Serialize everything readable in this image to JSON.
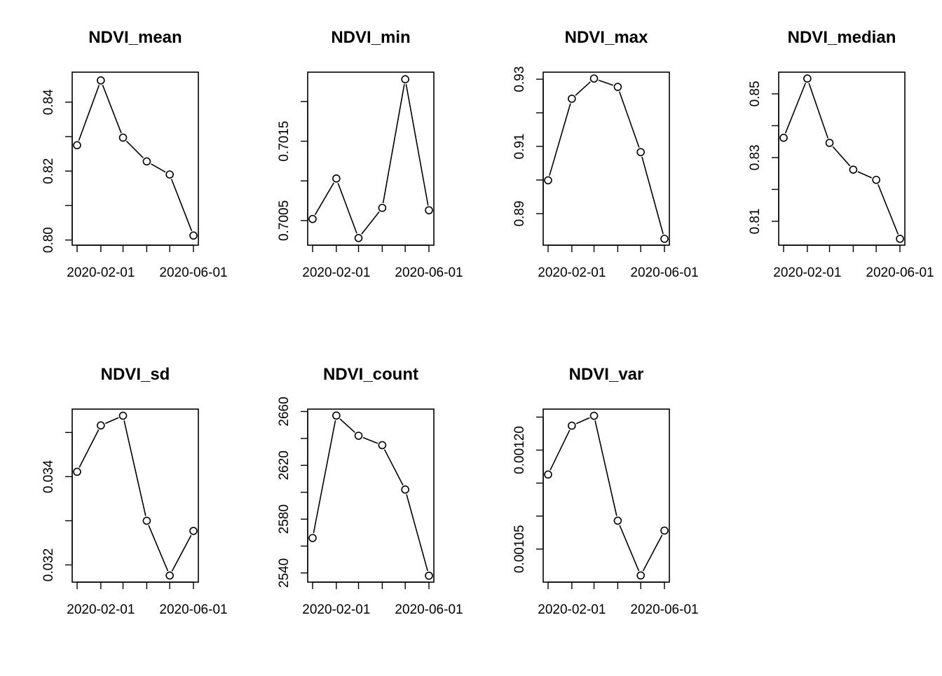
{
  "chart_data": [
    {
      "type": "line",
      "title": "NDVI_mean",
      "x": [
        "2020-01-01",
        "2020-02-01",
        "2020-03-01",
        "2020-04-01",
        "2020-05-01",
        "2020-06-01"
      ],
      "values": [
        0.8275,
        0.8463,
        0.8297,
        0.8228,
        0.819,
        0.8013
      ],
      "xticks": [
        "2020-02-01",
        "2020-06-01"
      ],
      "yticks": [
        "0.80",
        "0.82",
        "0.84"
      ],
      "yminor": [
        0.8,
        0.81,
        0.82,
        0.83,
        0.84
      ],
      "ylim": [
        0.7985,
        0.8487
      ]
    },
    {
      "type": "line",
      "title": "NDVI_min",
      "x": [
        "2020-01-01",
        "2020-02-01",
        "2020-03-01",
        "2020-04-01",
        "2020-05-01",
        "2020-06-01"
      ],
      "values": [
        0.70052,
        0.70103,
        0.70028,
        0.70066,
        0.70228,
        0.70063
      ],
      "xticks": [
        "2020-02-01",
        "2020-06-01"
      ],
      "yticks": [
        "0.7005",
        "0.7015"
      ],
      "yminor": [
        0.7005,
        0.701,
        0.7015,
        0.702
      ],
      "ylim": [
        0.70019,
        0.70237
      ]
    },
    {
      "type": "line",
      "title": "NDVI_max",
      "x": [
        "2020-01-01",
        "2020-02-01",
        "2020-03-01",
        "2020-04-01",
        "2020-05-01",
        "2020-06-01"
      ],
      "values": [
        0.8999,
        0.9242,
        0.9302,
        0.9277,
        0.9083,
        0.8825
      ],
      "xticks": [
        "2020-02-01",
        "2020-06-01"
      ],
      "yticks": [
        "0.89",
        "0.91",
        "0.93"
      ],
      "yminor": [
        0.89,
        0.9,
        0.91,
        0.92,
        0.93
      ],
      "ylim": [
        0.8806,
        0.9321
      ]
    },
    {
      "type": "line",
      "title": "NDVI_median",
      "x": [
        "2020-01-01",
        "2020-02-01",
        "2020-03-01",
        "2020-04-01",
        "2020-05-01",
        "2020-06-01"
      ],
      "values": [
        0.8362,
        0.8548,
        0.8346,
        0.8262,
        0.823,
        0.8045
      ],
      "xticks": [
        "2020-02-01",
        "2020-06-01"
      ],
      "yticks": [
        "0.81",
        "0.83",
        "0.85"
      ],
      "yminor": [
        0.81,
        0.82,
        0.83,
        0.84,
        0.85
      ],
      "ylim": [
        0.8025,
        0.8568
      ]
    },
    {
      "type": "line",
      "title": "NDVI_sd",
      "x": [
        "2020-01-01",
        "2020-02-01",
        "2020-03-01",
        "2020-04-01",
        "2020-05-01",
        "2020-06-01"
      ],
      "values": [
        0.03411,
        0.03516,
        0.03538,
        0.033,
        0.03176,
        0.03277
      ],
      "xticks": [
        "2020-02-01",
        "2020-06-01"
      ],
      "yticks": [
        "0.032",
        "0.034"
      ],
      "yminor": [
        0.032,
        0.033,
        0.034,
        0.035
      ],
      "ylim": [
        0.03161,
        0.03553
      ]
    },
    {
      "type": "line",
      "title": "NDVI_count",
      "x": [
        "2020-01-01",
        "2020-02-01",
        "2020-03-01",
        "2020-04-01",
        "2020-05-01",
        "2020-06-01"
      ],
      "values": [
        2566,
        2657,
        2642,
        2635,
        2602,
        2538
      ],
      "xticks": [
        "2020-02-01",
        "2020-06-01"
      ],
      "yticks": [
        "2540",
        "2580",
        "2620",
        "2660"
      ],
      "yminor": [
        2540,
        2560,
        2580,
        2600,
        2620,
        2640,
        2660
      ],
      "ylim": [
        2533.2,
        2661.8
      ]
    },
    {
      "type": "line",
      "title": "NDVI_var",
      "x": [
        "2020-01-01",
        "2020-02-01",
        "2020-03-01",
        "2020-04-01",
        "2020-05-01",
        "2020-06-01"
      ],
      "values": [
        0.001163,
        0.001237,
        0.001252,
        0.001093,
        0.00101,
        0.001078
      ],
      "xticks": [
        "2020-02-01",
        "2020-06-01"
      ],
      "yticks": [
        "0.00105",
        "0.00120"
      ],
      "yminor": [
        0.00105,
        0.0011,
        0.00115,
        0.0012,
        0.00125
      ],
      "ylim": [
        0.0009999,
        0.0012621
      ]
    }
  ]
}
